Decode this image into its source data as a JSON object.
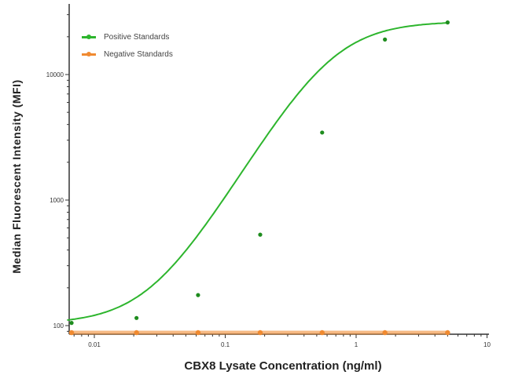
{
  "chart_data": {
    "type": "line",
    "title": "",
    "xlabel": "CBX8 Lysate Concentration (ng/ml)",
    "ylabel": "Median  Fluorescent Intensity  (MFI)",
    "xscale": "log",
    "yscale": "log",
    "xlim": [
      0.006,
      10
    ],
    "ylim": [
      90,
      30000
    ],
    "x_ticks": [
      "0.01",
      "0.1",
      "1",
      "10"
    ],
    "y_ticks": [
      "100",
      "1000",
      "10000"
    ],
    "grid": false,
    "legend_position": "upper left",
    "x": [
      0.0067,
      0.021,
      0.062,
      0.185,
      0.55,
      1.66,
      5.0
    ],
    "series": [
      {
        "name": "Positive Standards",
        "color": "#2db52d",
        "values": [
          105,
          115,
          175,
          530,
          3450,
          19000,
          26000
        ]
      },
      {
        "name": "Negative Standards",
        "color": "#f08a30",
        "values": [
          90,
          90,
          90,
          90,
          90,
          90,
          90
        ]
      }
    ]
  },
  "legend": {
    "positive_label": "Positive Standards",
    "negative_label": "Negative Standards"
  },
  "axes": {
    "x_title": "CBX8 Lysate Concentration (ng/ml)",
    "y_title": "Median  Fluorescent Intensity  (MFI)"
  }
}
